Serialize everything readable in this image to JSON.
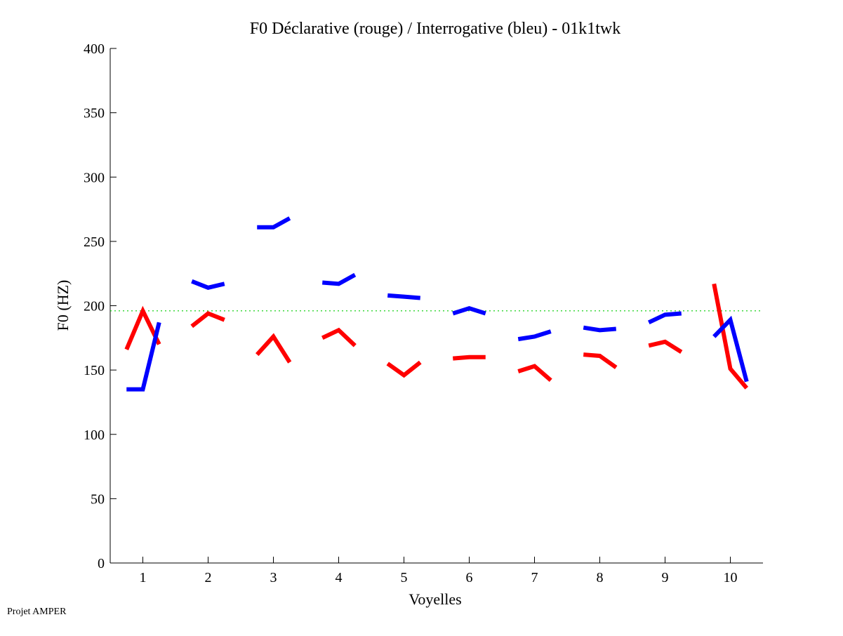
{
  "chart_data": {
    "type": "line",
    "title": "F0 Déclarative (rouge) / Interrogative (bleu) - 01k1twk",
    "xlabel": "Voyelles",
    "ylabel": "F0 (HZ)",
    "xlim": [
      0.5,
      10.5
    ],
    "ylim": [
      0,
      400
    ],
    "xticks": [
      "1",
      "2",
      "3",
      "4",
      "5",
      "6",
      "7",
      "8",
      "9",
      "10"
    ],
    "yticks": [
      "0",
      "50",
      "100",
      "150",
      "200",
      "250",
      "300",
      "350",
      "400"
    ],
    "reference_line": {
      "value": 196,
      "color": "#00cc00",
      "style": "dotted"
    },
    "series": [
      {
        "name": "Déclarative",
        "color": "#ff0000",
        "segments": [
          [
            166,
            196,
            170
          ],
          [
            184,
            194,
            189
          ],
          [
            162,
            176,
            156
          ],
          [
            175,
            181,
            169
          ],
          [
            155,
            146,
            156
          ],
          [
            159,
            160,
            160
          ],
          [
            149,
            153,
            142
          ],
          [
            162,
            161,
            152
          ],
          [
            169,
            172,
            164
          ],
          [
            217,
            151,
            136
          ]
        ]
      },
      {
        "name": "Interrogative",
        "color": "#0000ff",
        "segments": [
          [
            135,
            135,
            187
          ],
          [
            219,
            214,
            217
          ],
          [
            261,
            261,
            268
          ],
          [
            218,
            217,
            224
          ],
          [
            208,
            207,
            206
          ],
          [
            194,
            198,
            194
          ],
          [
            174,
            176,
            180
          ],
          [
            183,
            181,
            182
          ],
          [
            187,
            193,
            194
          ],
          [
            176,
            189,
            141
          ]
        ]
      }
    ]
  },
  "footer": {
    "credit": "Projet AMPER"
  }
}
